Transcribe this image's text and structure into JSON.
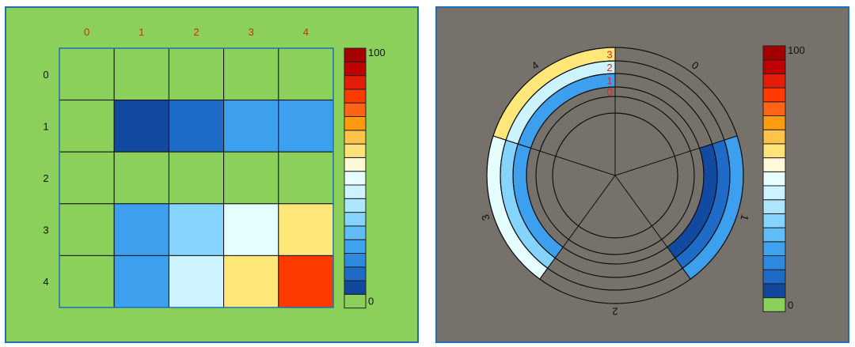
{
  "colors": {
    "left_background": "#8bd05a",
    "right_background": "#76716b",
    "panel_border": "#1f6fb4",
    "label_red": "#e2231a",
    "label_black": "#111111"
  },
  "colorbar": {
    "min_label": "0",
    "max_label": "100",
    "colors": [
      "#8bd05a",
      "#11489e",
      "#1d6bc6",
      "#2d8ae0",
      "#3fa2ee",
      "#5fbcf7",
      "#85d3ff",
      "#aee6ff",
      "#cdf3ff",
      "#e8fdff",
      "#fff8d9",
      "#ffe27a",
      "#ffc24a",
      "#ff9b11",
      "#ff6414",
      "#ff3a00",
      "#e41d0a",
      "#c00000",
      "#a40000"
    ]
  },
  "chart_data": [
    {
      "type": "heatmap",
      "title": "",
      "columns": [
        "0",
        "1",
        "2",
        "3",
        "4"
      ],
      "rows": [
        "0",
        "1",
        "2",
        "3",
        "4"
      ],
      "values": [
        [
          0,
          0,
          0,
          0,
          0
        ],
        [
          0,
          10,
          15,
          25,
          25
        ],
        [
          0,
          0,
          0,
          0,
          0
        ],
        [
          0,
          25,
          35,
          50,
          55
        ],
        [
          0,
          25,
          45,
          55,
          85
        ]
      ],
      "vmin": 0,
      "vmax": 100,
      "cell_colors": [
        [
          "#8bd05a",
          "#8bd05a",
          "#8bd05a",
          "#8bd05a",
          "#8bd05a"
        ],
        [
          "#8bd05a",
          "#114aa0",
          "#1f6cc8",
          "#3ca0ee",
          "#3ca0ee"
        ],
        [
          "#8bd05a",
          "#8bd05a",
          "#8bd05a",
          "#8bd05a",
          "#8bd05a"
        ],
        [
          "#8bd05a",
          "#3ca0ee",
          "#85d3ff",
          "#e5feff",
          "#ffe77a"
        ],
        [
          "#8bd05a",
          "#3ca0ee",
          "#cdf3ff",
          "#ffe77a",
          "#ff3a00"
        ]
      ]
    },
    {
      "type": "heatmap",
      "subtype": "polar",
      "title": "",
      "sectors": [
        "0",
        "1",
        "2",
        "3",
        "4"
      ],
      "rings": [
        "0",
        "1",
        "2",
        "3"
      ],
      "values": [
        [
          0,
          0,
          0,
          0,
          0
        ],
        [
          0,
          10,
          0,
          25,
          25
        ],
        [
          0,
          15,
          0,
          35,
          45
        ],
        [
          0,
          25,
          0,
          50,
          55
        ]
      ],
      "vmin": 0,
      "vmax": 100,
      "cell_colors": [
        [
          "none",
          "none",
          "none",
          "none",
          "none"
        ],
        [
          "none",
          "#114aa0",
          "none",
          "#3ca0ee",
          "#3ca0ee"
        ],
        [
          "none",
          "#1f6cc8",
          "none",
          "#85d3ff",
          "#cdf3ff"
        ],
        [
          "none",
          "#3ca0ee",
          "none",
          "#e5feff",
          "#ffe77a"
        ]
      ]
    }
  ]
}
